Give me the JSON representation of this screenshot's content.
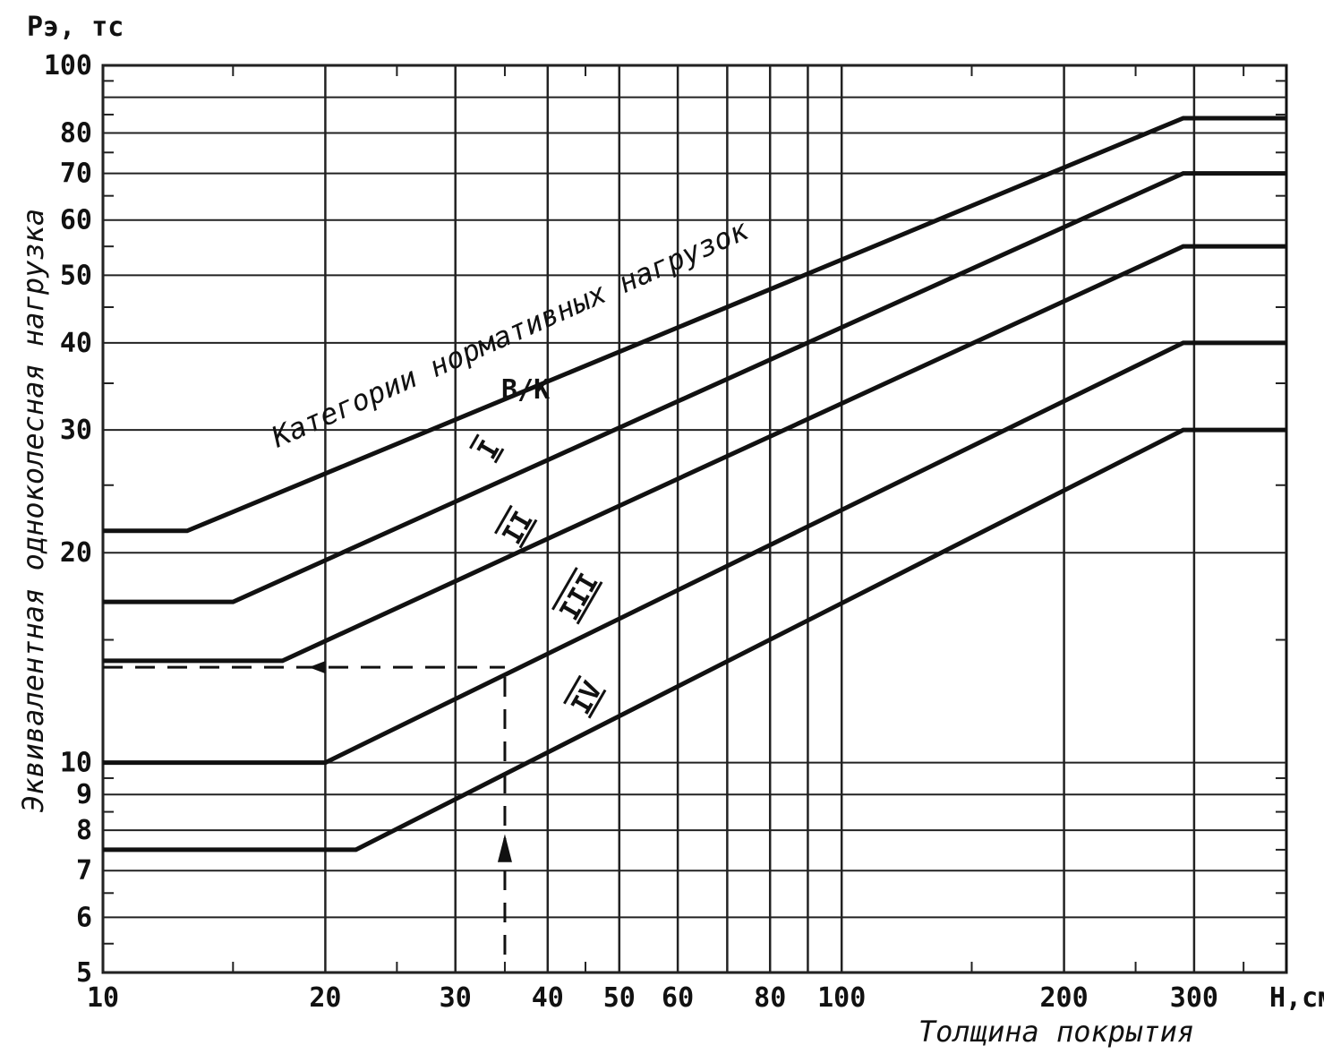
{
  "chart_data": {
    "type": "line",
    "scale": {
      "x": "log",
      "y": "log"
    },
    "xlim": [
      10,
      400
    ],
    "ylim": [
      5,
      100
    ],
    "ylabel_top": "Pэ, тс",
    "ylabel": "Эквивалентная одноколесная нагрузка",
    "xlabel": "Толщина покрытия",
    "xunit_label": "H,см",
    "x_ticks": [
      10,
      20,
      30,
      40,
      50,
      60,
      80,
      100,
      200,
      300
    ],
    "y_ticks": [
      5,
      6,
      7,
      8,
      9,
      10,
      20,
      30,
      40,
      50,
      60,
      70,
      80,
      100
    ],
    "x_grid": [
      10,
      20,
      30,
      40,
      50,
      60,
      70,
      80,
      90,
      100,
      200,
      300
    ],
    "y_grid": [
      5,
      6,
      7,
      8,
      9,
      10,
      20,
      30,
      40,
      50,
      60,
      70,
      80,
      90,
      100
    ],
    "annotation": "Категории нормативных нагрузок",
    "series": [
      {
        "name": "B/K",
        "x": [
          10,
          13,
          290,
          400
        ],
        "y": [
          21.5,
          21.5,
          84,
          84
        ]
      },
      {
        "name": "I",
        "x": [
          10,
          15,
          290,
          400
        ],
        "y": [
          17,
          17,
          70,
          70
        ]
      },
      {
        "name": "II",
        "x": [
          10,
          17.5,
          290,
          400
        ],
        "y": [
          14,
          14,
          55,
          55
        ]
      },
      {
        "name": "III",
        "x": [
          10,
          20,
          290,
          400
        ],
        "y": [
          10,
          10,
          40,
          40
        ]
      },
      {
        "name": "IV",
        "x": [
          10,
          22,
          290,
          400
        ],
        "y": [
          7.5,
          7.5,
          30,
          30
        ]
      }
    ],
    "example_path": {
      "x": 35,
      "y": 13.7,
      "style": "dashed"
    }
  }
}
